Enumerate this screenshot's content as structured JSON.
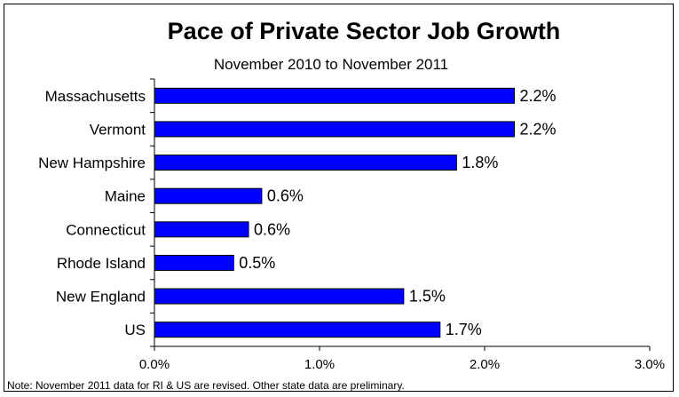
{
  "chart_data": {
    "type": "bar",
    "orientation": "horizontal",
    "title": "Pace of Private Sector Job Growth",
    "subtitle": "November 2010 to November 2011",
    "categories": [
      "Massachusetts",
      "Vermont",
      "New Hampshire",
      "Maine",
      "Connecticut",
      "Rhode Island",
      "New England",
      "US"
    ],
    "values": [
      2.2,
      2.2,
      1.8,
      0.6,
      0.6,
      0.5,
      1.5,
      1.7
    ],
    "bar_values": [
      2.18,
      2.18,
      1.83,
      0.65,
      0.57,
      0.48,
      1.51,
      1.73
    ],
    "value_labels": [
      "2.2%",
      "2.2%",
      "1.8%",
      "0.6%",
      "0.6%",
      "0.5%",
      "1.5%",
      "1.7%"
    ],
    "xlim": [
      0,
      3.0
    ],
    "xticks": [
      0,
      1.0,
      2.0,
      3.0
    ],
    "xtick_labels": [
      "0.0%",
      "1.0%",
      "2.0%",
      "3.0%"
    ],
    "grid": false,
    "bar_color": "#0000FF",
    "note": "Note: November 2011 data for RI & US are revised. Other state data are preliminary."
  }
}
